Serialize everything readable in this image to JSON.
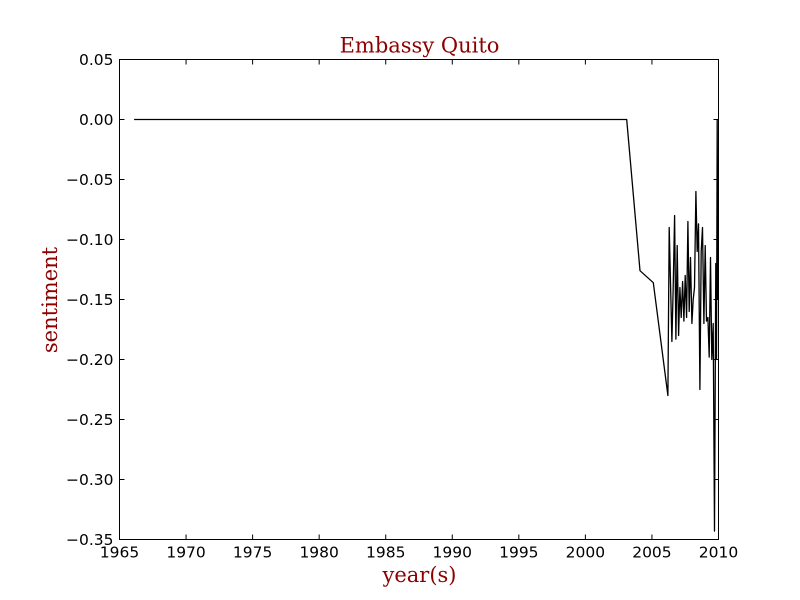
{
  "chart_data": {
    "type": "line",
    "title": "Embassy Quito",
    "xlabel": "year(s)",
    "ylabel": "sentiment",
    "xlim": [
      1965,
      2010
    ],
    "ylim": [
      -0.35,
      0.05
    ],
    "xticks": [
      1965,
      1970,
      1975,
      1980,
      1985,
      1990,
      1995,
      2000,
      2005,
      2010
    ],
    "yticks": [
      0.05,
      0.0,
      -0.05,
      -0.1,
      -0.15,
      -0.2,
      -0.25,
      -0.3,
      -0.35
    ],
    "ytick_labels": [
      "0.05",
      "0.00",
      "−0.05",
      "−0.10",
      "−0.15",
      "−0.20",
      "−0.25",
      "−0.30",
      "−0.35"
    ],
    "grid": false,
    "line_color": "#000000",
    "label_color": "#8b0000",
    "series": [
      {
        "x": [
          1966.1,
          2003.1,
          2004.1,
          2005.1,
          2006.2,
          2006.3,
          2006.5,
          2006.6,
          2006.7,
          2006.8,
          2006.9,
          2007.0,
          2007.1,
          2007.2,
          2007.3,
          2007.4,
          2007.5,
          2007.6,
          2007.7,
          2007.8,
          2007.9,
          2008.0,
          2008.1,
          2008.2,
          2008.3,
          2008.4,
          2008.5,
          2008.6,
          2008.7,
          2008.8,
          2008.9,
          2009.0,
          2009.1,
          2009.2,
          2009.3,
          2009.4,
          2009.5,
          2009.6,
          2009.7,
          2009.8,
          2009.85,
          2009.9,
          2009.95
        ],
        "y": [
          0.0,
          0.0,
          -0.126,
          -0.136,
          -0.23,
          -0.09,
          -0.185,
          -0.14,
          -0.08,
          -0.183,
          -0.105,
          -0.18,
          -0.14,
          -0.165,
          -0.135,
          -0.168,
          -0.13,
          -0.165,
          -0.085,
          -0.16,
          -0.115,
          -0.17,
          -0.15,
          -0.14,
          -0.06,
          -0.11,
          -0.087,
          -0.225,
          -0.11,
          -0.09,
          -0.17,
          -0.105,
          -0.168,
          -0.165,
          -0.198,
          -0.115,
          -0.2,
          -0.17,
          -0.343,
          -0.12,
          -0.2,
          0.0,
          -0.15
        ]
      }
    ]
  }
}
